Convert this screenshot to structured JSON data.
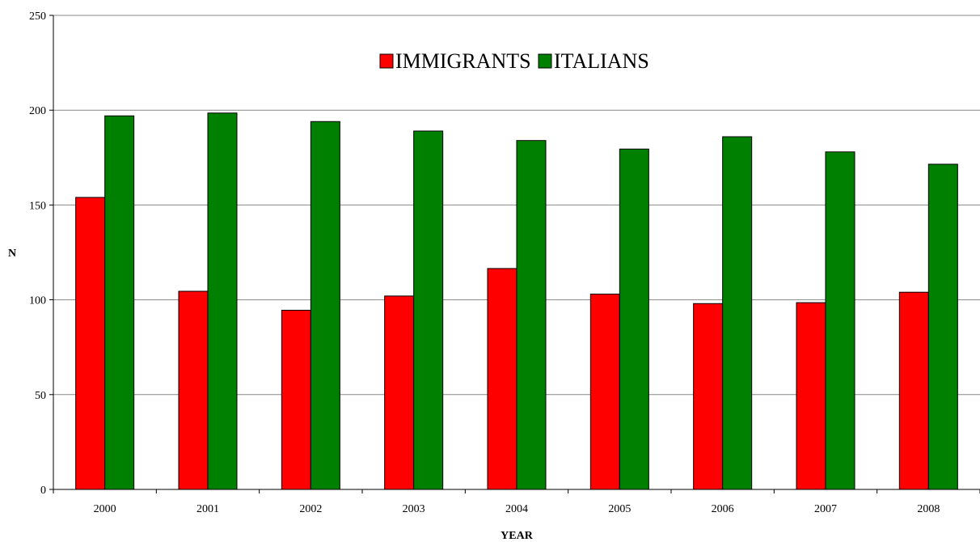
{
  "chart_data": {
    "type": "bar",
    "categories": [
      "2000",
      "2001",
      "2002",
      "2003",
      "2004",
      "2005",
      "2006",
      "2007",
      "2008"
    ],
    "series": [
      {
        "name": "IMMIGRANTS",
        "color": "#ff0000",
        "values": [
          154,
          104.5,
          94.5,
          102,
          116.5,
          103,
          98,
          98.5,
          104
        ]
      },
      {
        "name": "ITALIANS",
        "color": "#008000",
        "values": [
          197,
          198.5,
          194,
          189,
          184,
          179.5,
          186,
          178,
          171.5
        ]
      }
    ],
    "xlabel": "YEAR",
    "ylabel": "N",
    "ylim": [
      0,
      250
    ],
    "yticks": [
      "0",
      "50",
      "100",
      "150",
      "200",
      "250"
    ],
    "grid": true,
    "legend_position": "top-center"
  }
}
